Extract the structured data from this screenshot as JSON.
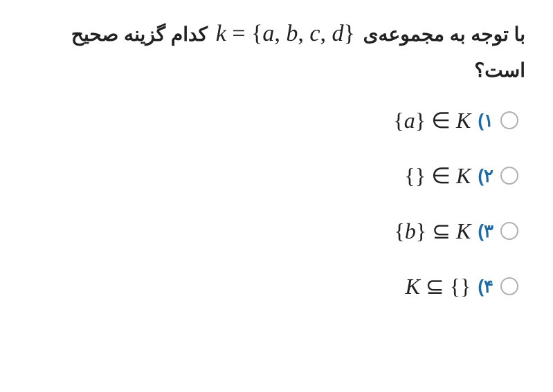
{
  "question": {
    "part1": "با توجه به مجموعه‌ی",
    "math": "k = {a, b, c, d}",
    "part2": "کدام گزینه صحیح است؟"
  },
  "options": [
    {
      "label": "۱)",
      "math": "{a} ∈ K"
    },
    {
      "label": "۲)",
      "math": "{} ∈ K"
    },
    {
      "label": "۳)",
      "math": "{b} ⊆ K"
    },
    {
      "label": "۴)",
      "math": "K ⊆ {}"
    }
  ],
  "colors": {
    "text": "#212121",
    "accent": "#1f6aa5",
    "radio_border": "#b0b0b0",
    "background": "#ffffff"
  },
  "typography": {
    "question_fontsize": 28,
    "question_fontweight": 700,
    "math_fontsize": 34,
    "option_label_fontsize": 26,
    "option_math_fontsize": 32
  }
}
